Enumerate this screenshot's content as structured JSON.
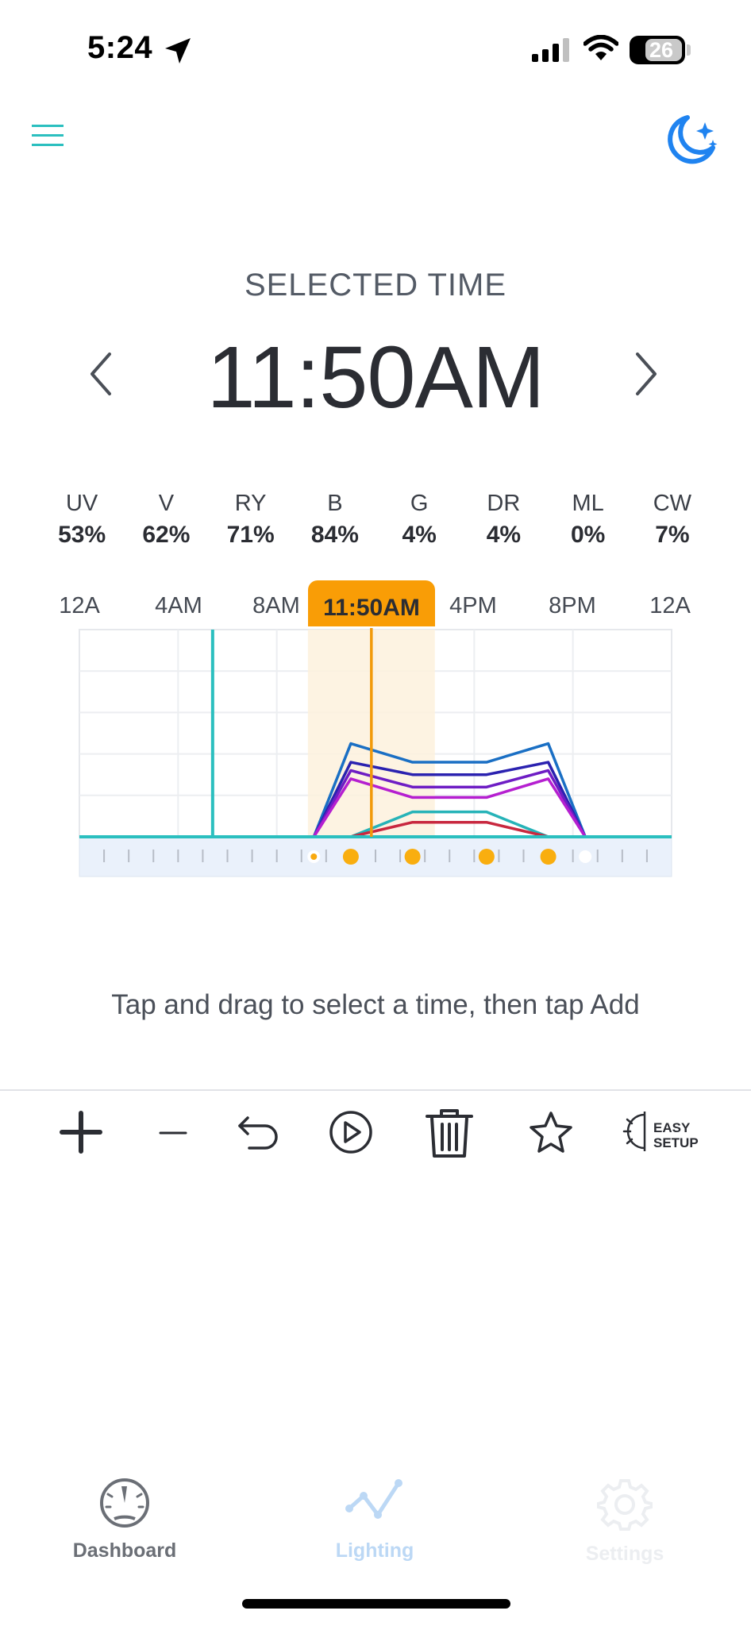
{
  "status_bar": {
    "time": "5:24",
    "battery": "26"
  },
  "header": {
    "selected_time_label": "SELECTED TIME",
    "selected_time_value": "11:50AM"
  },
  "channels": [
    {
      "name": "UV",
      "value": "53%"
    },
    {
      "name": "V",
      "value": "62%"
    },
    {
      "name": "RY",
      "value": "71%"
    },
    {
      "name": "B",
      "value": "84%"
    },
    {
      "name": "G",
      "value": "4%"
    },
    {
      "name": "DR",
      "value": "4%"
    },
    {
      "name": "ML",
      "value": "0%"
    },
    {
      "name": "CW",
      "value": "7%"
    }
  ],
  "timeline": {
    "tick_labels": [
      "12A",
      "4AM",
      "8AM",
      "4PM",
      "8PM",
      "12A"
    ],
    "current_time_label": "11:50AM",
    "selected_time_hours": 11.833,
    "now_marker_hours": 5.4,
    "points_hours": [
      9.5,
      11,
      13.5,
      16.5,
      19,
      20.5
    ]
  },
  "chart_data": {
    "type": "line",
    "x_unit": "hours",
    "xlim": [
      0,
      24
    ],
    "ylim": [
      0,
      100
    ],
    "series": [
      {
        "color": "#1a6fc4",
        "points": [
          [
            0,
            0
          ],
          [
            9.5,
            0
          ],
          [
            11,
            45
          ],
          [
            13.5,
            36
          ],
          [
            16.5,
            36
          ],
          [
            19,
            45
          ],
          [
            20.5,
            0
          ],
          [
            24,
            0
          ]
        ]
      },
      {
        "color": "#2b22b0",
        "points": [
          [
            0,
            0
          ],
          [
            9.5,
            0
          ],
          [
            11,
            36
          ],
          [
            13.5,
            30
          ],
          [
            16.5,
            30
          ],
          [
            19,
            36
          ],
          [
            20.5,
            0
          ],
          [
            24,
            0
          ]
        ]
      },
      {
        "color": "#6e1dc4",
        "points": [
          [
            0,
            0
          ],
          [
            9.5,
            0
          ],
          [
            11,
            32
          ],
          [
            13.5,
            24
          ],
          [
            16.5,
            24
          ],
          [
            19,
            32
          ],
          [
            20.5,
            0
          ],
          [
            24,
            0
          ]
        ]
      },
      {
        "color": "#b51fd0",
        "points": [
          [
            0,
            0
          ],
          [
            9.5,
            0
          ],
          [
            11,
            28
          ],
          [
            13.5,
            19
          ],
          [
            16.5,
            19
          ],
          [
            19,
            28
          ],
          [
            20.5,
            0
          ],
          [
            24,
            0
          ]
        ]
      },
      {
        "color": "#26b3b8",
        "points": [
          [
            0,
            0
          ],
          [
            11,
            0
          ],
          [
            13.5,
            12
          ],
          [
            16.5,
            12
          ],
          [
            19,
            0
          ],
          [
            24,
            0
          ]
        ]
      },
      {
        "color": "#c8283f",
        "points": [
          [
            0,
            0
          ],
          [
            11,
            0
          ],
          [
            13.5,
            7
          ],
          [
            16.5,
            7
          ],
          [
            19,
            0
          ],
          [
            24,
            0
          ]
        ]
      }
    ]
  },
  "hint": "Tap and drag to select a time, then tap Add",
  "toolbar": {
    "easy_setup_line1": "EASY",
    "easy_setup_line2": "SETUP"
  },
  "nav": {
    "dashboard": "Dashboard",
    "lighting": "Lighting",
    "settings": "Settings"
  },
  "colors": {
    "accent": "#f99d06",
    "teal": "#2bbfbf",
    "active_nav": "#bcd8f5",
    "inactive_nav": "#6b6f76",
    "disabled_nav": "#eceef1",
    "moon": "#1f83f0"
  }
}
